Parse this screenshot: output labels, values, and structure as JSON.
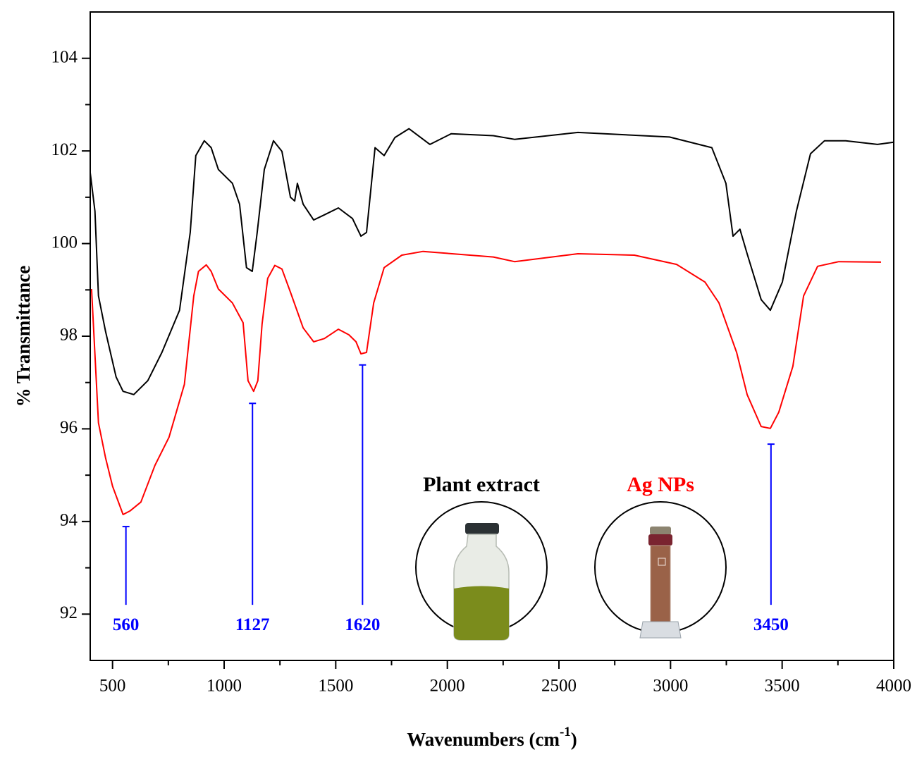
{
  "chart_data": {
    "type": "line",
    "y_label": "% Transmittance",
    "x_label": {
      "main": "Wavenumbers (cm",
      "superscript": "-1",
      "close": ")"
    },
    "xlim": [
      400,
      4000
    ],
    "ylim": [
      91,
      105
    ],
    "xticks": [
      500,
      1000,
      1500,
      2000,
      2500,
      3000,
      3500,
      4000
    ],
    "yticks": [
      92,
      94,
      96,
      98,
      100,
      102,
      104
    ],
    "xminorticks": [
      750,
      1250,
      1750,
      2250,
      2750,
      3250,
      3750
    ],
    "yminorticks": [
      93,
      95,
      97,
      99,
      101,
      103
    ],
    "series": [
      {
        "name": "Plant extract",
        "color": "#000000",
        "x": [
          400,
          421,
          437,
          469,
          516,
          547,
          595,
          658,
          721,
          800,
          848,
          873,
          911,
          942,
          974,
          1037,
          1069,
          1100,
          1126,
          1148,
          1180,
          1221,
          1259,
          1297,
          1316,
          1328,
          1354,
          1401,
          1449,
          1512,
          1575,
          1613,
          1638,
          1660,
          1676,
          1717,
          1765,
          1828,
          1922,
          2017,
          2206,
          2301,
          2585,
          2995,
          3185,
          3248,
          3280,
          3311,
          3343,
          3406,
          3447,
          3501,
          3564,
          3627,
          3690,
          3785,
          3927,
          4000
        ],
        "values": [
          101.53,
          100.7,
          98.87,
          98.1,
          97.12,
          96.81,
          96.74,
          97.04,
          97.65,
          98.56,
          100.24,
          101.9,
          102.22,
          102.07,
          101.6,
          101.3,
          100.85,
          99.48,
          99.4,
          100.24,
          101.6,
          102.22,
          101.99,
          101,
          100.92,
          101.3,
          100.85,
          100.51,
          100.62,
          100.77,
          100.54,
          100.16,
          100.24,
          101.3,
          102.07,
          101.9,
          102.29,
          102.48,
          102.14,
          102.37,
          102.33,
          102.25,
          102.4,
          102.3,
          102.07,
          101.3,
          100.16,
          100.31,
          99.78,
          98.79,
          98.56,
          99.17,
          100.7,
          101.94,
          102.22,
          102.22,
          102.14,
          102.19
        ]
      },
      {
        "name": "Ag NPs",
        "color": "#ff0000",
        "x": [
          406,
          437,
          469,
          500,
          547,
          579,
          627,
          690,
          753,
          822,
          864,
          885,
          920,
          942,
          974,
          1037,
          1085,
          1107,
          1132,
          1151,
          1170,
          1195,
          1227,
          1259,
          1297,
          1354,
          1401,
          1449,
          1512,
          1559,
          1591,
          1613,
          1638,
          1670,
          1717,
          1796,
          1891,
          2206,
          2301,
          2585,
          2838,
          3027,
          3154,
          3217,
          3296,
          3343,
          3406,
          3447,
          3485,
          3548,
          3596,
          3659,
          3754,
          3943
        ],
        "values": [
          99.02,
          96.13,
          95.37,
          94.76,
          94.15,
          94.23,
          94.42,
          95.21,
          95.82,
          96.96,
          98.87,
          99.4,
          99.54,
          99.4,
          99.02,
          98.72,
          98.29,
          97.04,
          96.81,
          97.04,
          98.26,
          99.25,
          99.53,
          99.45,
          98.95,
          98.18,
          97.88,
          97.95,
          98.15,
          98.03,
          97.88,
          97.62,
          97.65,
          98.72,
          99.48,
          99.75,
          99.83,
          99.71,
          99.61,
          99.78,
          99.75,
          99.55,
          99.17,
          98.72,
          97.65,
          96.74,
          96.05,
          96.01,
          96.36,
          97.35,
          98.87,
          99.51,
          99.61,
          99.6
        ]
      }
    ],
    "annotation_color": "#0000ff",
    "annotation_base": 92.2,
    "annotations": [
      {
        "x": 560,
        "y": 93.89
      },
      {
        "x": 1127,
        "y": 96.55
      },
      {
        "x": 1620,
        "y": 97.38
      },
      {
        "x": 3450,
        "y": 95.67
      }
    ]
  }
}
